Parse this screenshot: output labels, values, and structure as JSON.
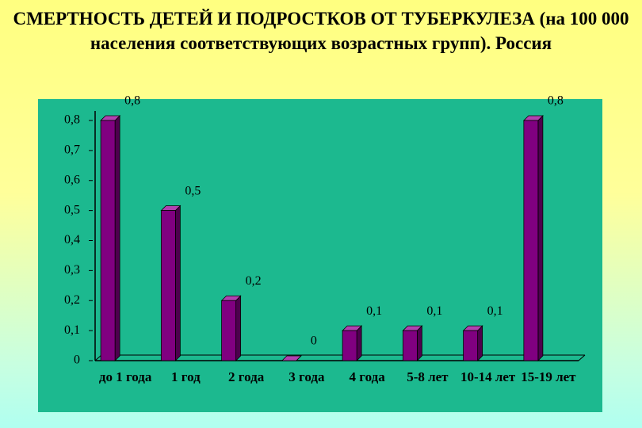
{
  "chart_data": {
    "type": "bar",
    "title": "СМЕРТНОСТЬ ДЕТЕЙ И ПОДРОСТКОВ  ОТ ТУБЕРКУЛЕЗА (на 100 000 населения соответствующих возрастных групп). Россия",
    "categories": [
      "до 1 года",
      "1 год",
      "2 года",
      "3 года",
      "4 года",
      "5-8 лет",
      "10-14 лет",
      "15-19 лет"
    ],
    "values": [
      0.8,
      0.5,
      0.2,
      0,
      0.1,
      0.1,
      0.1,
      0.8
    ],
    "value_labels": [
      "0,8",
      "0,5",
      "0,2",
      "0",
      "0,1",
      "0,1",
      "0,1",
      "0,8"
    ],
    "color": "#800080",
    "ylim": [
      0,
      0.8
    ],
    "yticks": [
      0,
      {
        "value": 0.1,
        "label": "0,1"
      },
      {
        "value": 0.2,
        "label": "0,2"
      },
      {
        "value": 0.3,
        "label": "0,3"
      },
      {
        "value": 0.4,
        "label": "0,4"
      },
      {
        "value": 0.5,
        "label": "0,5"
      },
      {
        "value": 0.6,
        "label": "0,6"
      },
      {
        "value": 0.7,
        "label": "0,7"
      },
      {
        "value": 0.8,
        "label": "0,8"
      }
    ]
  }
}
